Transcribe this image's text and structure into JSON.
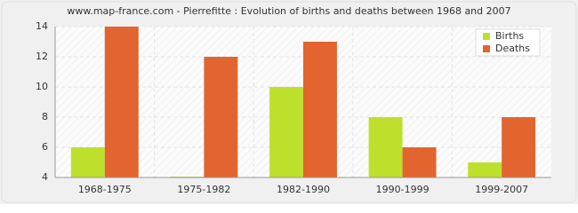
{
  "chart_data": {
    "type": "bar",
    "title": "www.map-france.com - Pierrefitte : Evolution of births and deaths between 1968 and 2007",
    "categories": [
      "1968-1975",
      "1975-1982",
      "1982-1990",
      "1990-1999",
      "1999-2007"
    ],
    "series": [
      {
        "name": "Births",
        "color": "#bde02d",
        "values": [
          6,
          4,
          10,
          8,
          5
        ]
      },
      {
        "name": "Deaths",
        "color": "#e2642e",
        "values": [
          14,
          12,
          13,
          6,
          8
        ]
      }
    ],
    "ylim": [
      4,
      14
    ],
    "yticks": [
      4,
      6,
      8,
      10,
      12,
      14
    ],
    "grid": true,
    "legend": "top-right"
  }
}
